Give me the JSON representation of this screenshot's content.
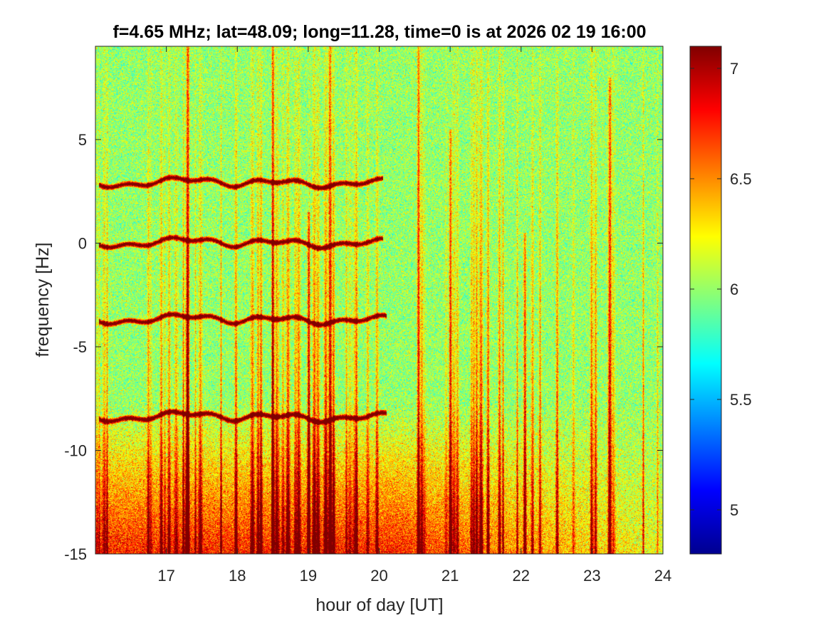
{
  "chart_data": {
    "type": "heatmap",
    "title": "f=4.65 MHz;  lat=48.09; long=11.28, time=0 is at 2026 02 19 16:00",
    "xlabel": "hour of day [UT]",
    "ylabel": "frequency [Hz]",
    "xlim": [
      16.0,
      24.0
    ],
    "ylim": [
      -15,
      9.5
    ],
    "xticks": [
      17,
      18,
      19,
      20,
      21,
      22,
      23,
      24
    ],
    "xtick_labels": [
      "17",
      "18",
      "19",
      "20",
      "21",
      "22",
      "23",
      "24"
    ],
    "yticks": [
      5,
      0,
      -5,
      -10,
      -15
    ],
    "ytick_labels": [
      "5",
      "0",
      "-5",
      "-10",
      "-15"
    ],
    "colorbar": {
      "colormap": "jet",
      "clim": [
        4.8,
        7.1
      ],
      "ticks": [
        7,
        6.5,
        6,
        5.5,
        5
      ],
      "tick_labels": [
        "7",
        "6.5",
        "6",
        "5.5",
        "5"
      ]
    },
    "background_level": 6.0,
    "features": {
      "traces": [
        {
          "center_hz": 2.9,
          "x_start": 16.05,
          "x_end": 20.05,
          "level": 7.1
        },
        {
          "center_hz": 0.0,
          "x_start": 16.05,
          "x_end": 20.05,
          "level": 7.1
        },
        {
          "center_hz": -3.7,
          "x_start": 16.05,
          "x_end": 20.1,
          "level": 7.1
        },
        {
          "center_hz": -8.4,
          "x_start": 16.05,
          "x_end": 20.1,
          "level": 7.1
        }
      ],
      "vertical_bursts": [
        {
          "x": 17.3,
          "y_top": 9.5
        },
        {
          "x": 18.5,
          "y_top": 9.5
        },
        {
          "x": 19.3,
          "y_top": 9.5
        },
        {
          "x": 19.0,
          "y_top": 1.5
        },
        {
          "x": 20.55,
          "y_top": 9.5
        },
        {
          "x": 21.0,
          "y_top": 5.5
        },
        {
          "x": 22.05,
          "y_top": 0.5
        },
        {
          "x": 23.25,
          "y_top": 8.0
        }
      ],
      "enhanced_band": {
        "y_from": -15,
        "y_to": -9,
        "level": 6.8
      }
    }
  }
}
